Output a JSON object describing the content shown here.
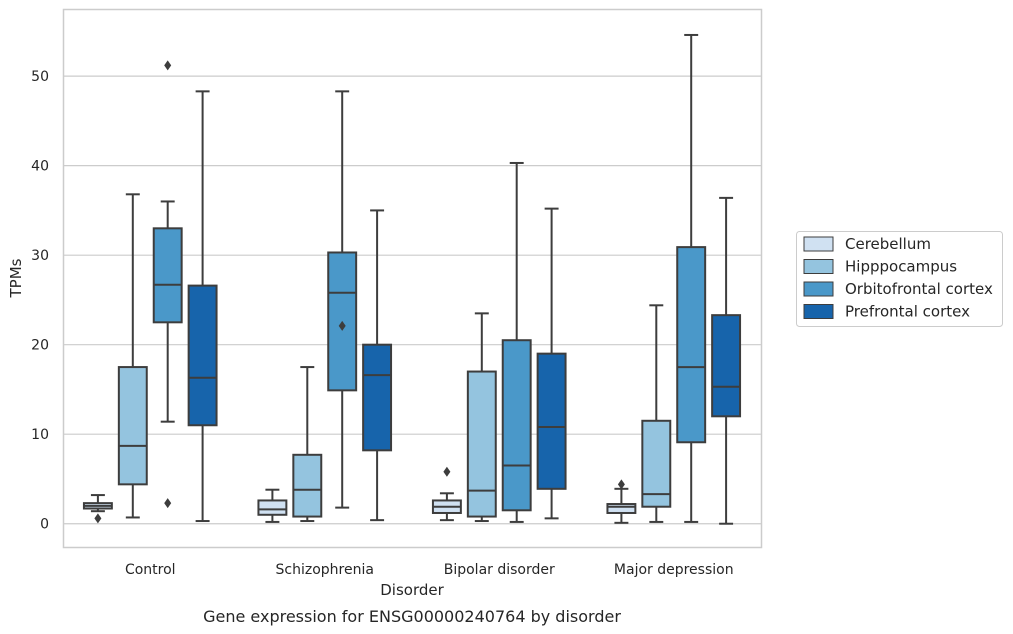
{
  "chart_data": {
    "type": "box",
    "title": "",
    "caption": "Gene expression for ENSG00000240764 by disorder",
    "xlabel": "Disorder",
    "ylabel": "TPMs",
    "ylim": [
      -2.6,
      57.5
    ],
    "yticks": [
      0,
      10,
      20,
      30,
      40,
      50
    ],
    "grid": "horizontal",
    "legend_position": "right",
    "categories": [
      "Control",
      "Schizophrenia",
      "Bipolar disorder",
      "Major depression"
    ],
    "series": [
      {
        "name": "Cerebellum",
        "color": "#d0e1f2",
        "boxes": [
          {
            "whisker_low": 1.4,
            "q1": 1.7,
            "median": 2.0,
            "q3": 2.3,
            "whisker_high": 3.2,
            "outliers": [
              0.6
            ]
          },
          {
            "whisker_low": 0.2,
            "q1": 1.0,
            "median": 1.6,
            "q3": 2.6,
            "whisker_high": 3.8,
            "outliers": []
          },
          {
            "whisker_low": 0.4,
            "q1": 1.2,
            "median": 1.9,
            "q3": 2.6,
            "whisker_high": 3.4,
            "outliers": [
              5.8
            ]
          },
          {
            "whisker_low": 0.1,
            "q1": 1.2,
            "median": 1.9,
            "q3": 2.2,
            "whisker_high": 3.9,
            "outliers": [
              4.4
            ]
          }
        ]
      },
      {
        "name": "Hipppocampus",
        "color": "#94c4df",
        "boxes": [
          {
            "whisker_low": 0.7,
            "q1": 4.4,
            "median": 8.7,
            "q3": 17.5,
            "whisker_high": 36.8,
            "outliers": []
          },
          {
            "whisker_low": 0.3,
            "q1": 0.8,
            "median": 3.8,
            "q3": 7.7,
            "whisker_high": 17.5,
            "outliers": []
          },
          {
            "whisker_low": 0.3,
            "q1": 0.8,
            "median": 3.7,
            "q3": 17.0,
            "whisker_high": 23.5,
            "outliers": []
          },
          {
            "whisker_low": 0.2,
            "q1": 1.9,
            "median": 3.3,
            "q3": 11.5,
            "whisker_high": 24.4,
            "outliers": []
          }
        ]
      },
      {
        "name": "Orbitofrontal cortex",
        "color": "#4a98c9",
        "boxes": [
          {
            "whisker_low": 11.4,
            "q1": 22.5,
            "median": 26.7,
            "q3": 33.0,
            "whisker_high": 36.0,
            "outliers": [
              51.2,
              2.3
            ]
          },
          {
            "whisker_low": 1.8,
            "q1": 14.9,
            "median": 25.8,
            "q3": 30.3,
            "whisker_high": 48.3,
            "outliers": [
              22.1
            ]
          },
          {
            "whisker_low": 0.2,
            "q1": 1.5,
            "median": 6.5,
            "q3": 20.5,
            "whisker_high": 40.3,
            "outliers": []
          },
          {
            "whisker_low": 0.2,
            "q1": 9.1,
            "median": 17.5,
            "q3": 30.9,
            "whisker_high": 54.6,
            "outliers": []
          }
        ]
      },
      {
        "name": "Prefrontal cortex",
        "color": "#1764ab",
        "boxes": [
          {
            "whisker_low": 0.3,
            "q1": 11.0,
            "median": 16.3,
            "q3": 26.6,
            "whisker_high": 48.3,
            "outliers": []
          },
          {
            "whisker_low": 0.4,
            "q1": 8.2,
            "median": 16.6,
            "q3": 20.0,
            "whisker_high": 35.0,
            "outliers": []
          },
          {
            "whisker_low": 0.6,
            "q1": 3.9,
            "median": 10.8,
            "q3": 19.0,
            "whisker_high": 35.2,
            "outliers": []
          },
          {
            "whisker_low": 0.0,
            "q1": 12.0,
            "median": 15.3,
            "q3": 23.3,
            "whisker_high": 36.4,
            "outliers": []
          }
        ]
      }
    ]
  }
}
